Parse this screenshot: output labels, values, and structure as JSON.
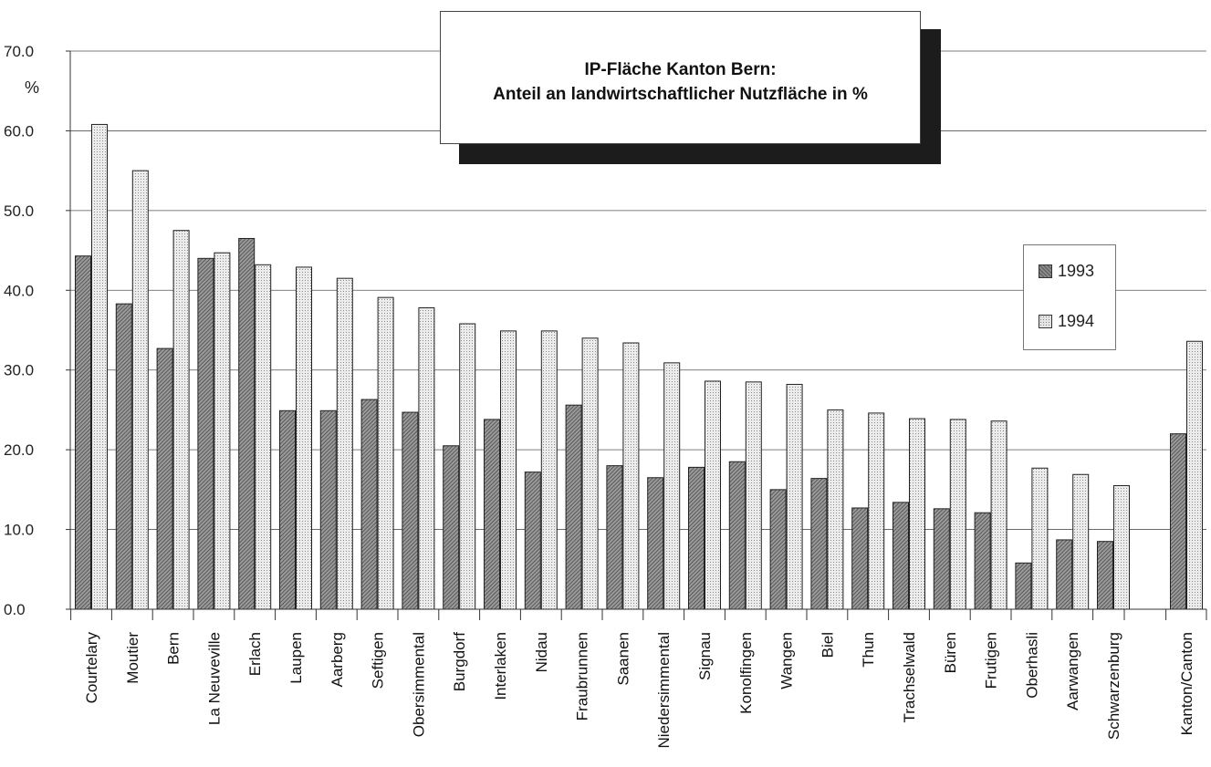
{
  "chart_data": {
    "type": "bar",
    "title_lines": [
      "IP-Fläche Kanton Bern:",
      "Anteil an landwirtschaftlicher Nutzfläche in %"
    ],
    "ylabel": "%",
    "ylim": [
      0,
      70
    ],
    "yticks": [
      "0.0",
      "10.0",
      "20.0",
      "30.0",
      "40.0",
      "50.0",
      "60.0",
      "70.0"
    ],
    "grid": true,
    "legend_position": "right",
    "categories": [
      "Courtelary",
      "Moutier",
      "Bern",
      "La Neuveville",
      "Erlach",
      "Laupen",
      "Aarberg",
      "Seftigen",
      "Obersimmental",
      "Burgdorf",
      "Interlaken",
      "Nidau",
      "Fraubrunnen",
      "Saanen",
      "Niedersimmental",
      "Signau",
      "Konolfingen",
      "Wangen",
      "Biel",
      "Thun",
      "Trachselwald",
      "Büren",
      "Frutigen",
      "Oberhasli",
      "Aarwangen",
      "Schwarzenburg",
      "Kanton/Canton"
    ],
    "series": [
      {
        "name": "1993",
        "color": "#7a7a7a",
        "values": [
          44.3,
          38.3,
          32.7,
          44.0,
          46.5,
          24.9,
          24.9,
          26.3,
          24.7,
          20.5,
          23.8,
          17.2,
          25.6,
          18.0,
          16.5,
          17.8,
          18.5,
          15.0,
          16.4,
          12.7,
          13.4,
          12.6,
          12.1,
          5.8,
          8.7,
          8.5,
          22.0
        ]
      },
      {
        "name": "1994",
        "color": "#e0e0e0",
        "values": [
          60.8,
          55.0,
          47.5,
          44.7,
          43.2,
          42.9,
          41.5,
          39.1,
          37.8,
          35.8,
          34.9,
          34.9,
          34.0,
          33.4,
          30.9,
          28.6,
          28.5,
          28.2,
          25.0,
          24.6,
          23.9,
          23.8,
          23.6,
          17.7,
          16.9,
          15.5,
          33.6
        ]
      }
    ]
  }
}
